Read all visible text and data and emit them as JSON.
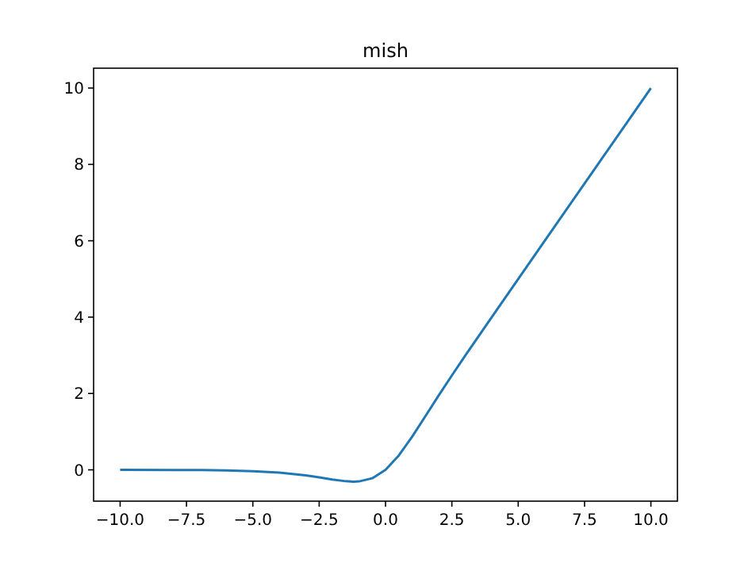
{
  "chart_data": {
    "type": "line",
    "title": "mish",
    "x": [
      -10,
      -8,
      -7,
      -6,
      -5,
      -4,
      -3,
      -2.5,
      -2,
      -1.5,
      -1.2,
      -1,
      -0.5,
      0,
      0.5,
      1,
      1.5,
      2,
      2.5,
      3,
      4,
      5,
      6,
      8,
      10
    ],
    "series": [
      {
        "color": "#1f77b4",
        "values": [
          0,
          -0.003,
          -0.006,
          -0.015,
          -0.034,
          -0.073,
          -0.146,
          -0.197,
          -0.253,
          -0.298,
          -0.309,
          -0.303,
          -0.221,
          0,
          0.375,
          0.865,
          1.403,
          1.944,
          2.472,
          2.987,
          3.997,
          5.0,
          6.0,
          8.0,
          10.0
        ]
      }
    ],
    "xlim": [
      -11,
      11
    ],
    "ylim": [
      -0.82,
      10.52
    ],
    "xticks": [
      {
        "value": -10,
        "label": "−10.0"
      },
      {
        "value": -7.5,
        "label": "−7.5"
      },
      {
        "value": -5,
        "label": "−5.0"
      },
      {
        "value": -2.5,
        "label": "−2.5"
      },
      {
        "value": 0,
        "label": "0.0"
      },
      {
        "value": 2.5,
        "label": "2.5"
      },
      {
        "value": 5,
        "label": "5.0"
      },
      {
        "value": 7.5,
        "label": "7.5"
      },
      {
        "value": 10,
        "label": "10.0"
      }
    ],
    "yticks": [
      0,
      2,
      4,
      6,
      8,
      10
    ],
    "grid": false,
    "line_style": "solid"
  }
}
